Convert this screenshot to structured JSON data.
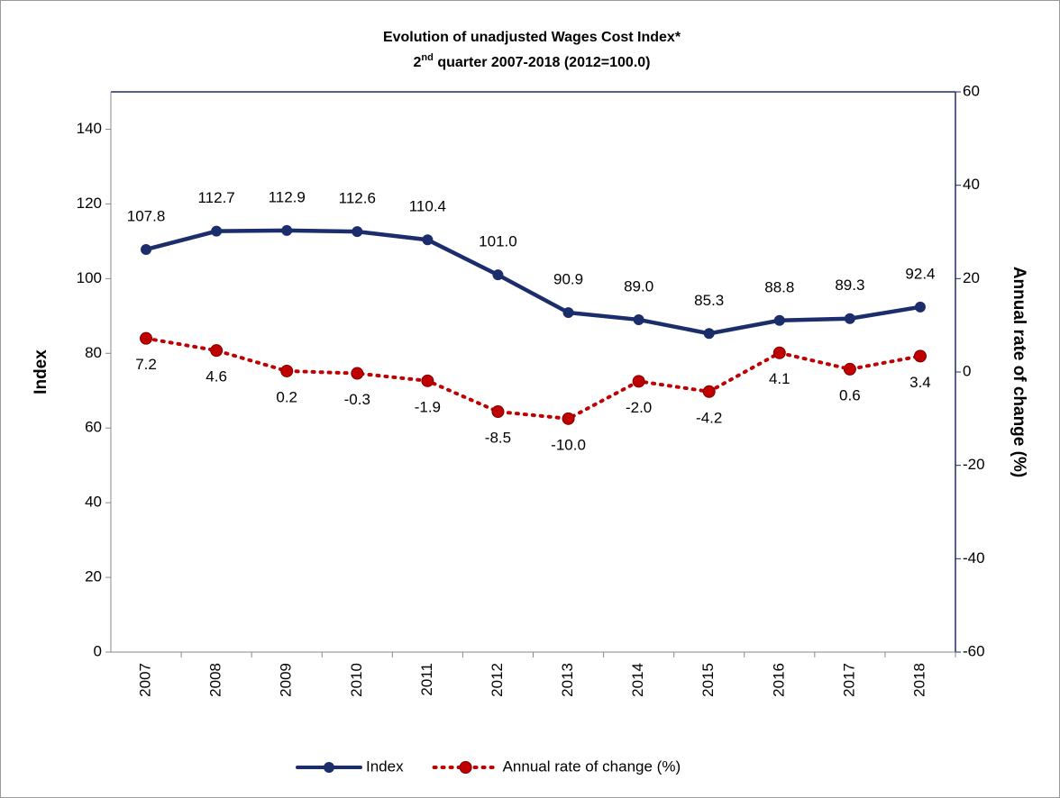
{
  "chart_data": {
    "type": "line",
    "title": "Evolution of unadjusted Wages Cost Index*",
    "subtitle_parts": [
      "2",
      "nd",
      " quarter 2007-2018 (2012=100.0)"
    ],
    "y_label": "Index",
    "y2_label": "Annual rate of change (%)",
    "categories": [
      "2007",
      "2008",
      "2009",
      "2010",
      "2011",
      "2012",
      "2013",
      "2014",
      "2015",
      "2016",
      "2017",
      "2018"
    ],
    "series": [
      {
        "name": "Index",
        "color": "#1b2d6b",
        "style": "solid",
        "values": [
          107.8,
          112.7,
          112.9,
          112.6,
          110.4,
          101.0,
          90.9,
          89.0,
          85.3,
          88.8,
          89.3,
          92.4
        ],
        "value_labels": [
          "107.8",
          "112.7",
          "112.9",
          "112.6",
          "110.4",
          "101.0",
          "90.9",
          "89.0",
          "85.3",
          "88.8",
          "89.3",
          "92.4"
        ]
      },
      {
        "name": "Annual rate of change (%)",
        "color": "#c00000",
        "style": "dotted",
        "axis": "y2",
        "values": [
          7.2,
          4.6,
          0.2,
          -0.3,
          -1.9,
          -8.5,
          -10.0,
          -2.0,
          -4.2,
          4.1,
          0.6,
          3.4
        ],
        "value_labels": [
          "7.2",
          "4.6",
          "0.2",
          "-0.3",
          "-1.9",
          "-8.5",
          "-10.0",
          "-2.0",
          "-4.2",
          "4.1",
          "0.6",
          "3.4"
        ]
      }
    ],
    "ylim": [
      0,
      150
    ],
    "yticks": [
      0,
      20,
      40,
      60,
      80,
      100,
      120,
      140
    ],
    "y2lim": [
      -60,
      60
    ],
    "y2ticks": [
      -60,
      -40,
      -20,
      0,
      20,
      40,
      60
    ],
    "legend": "bottom",
    "grid": false
  }
}
